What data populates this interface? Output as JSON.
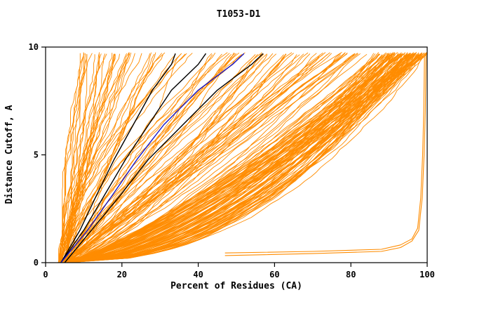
{
  "page": {
    "background": "#ffffff"
  },
  "chart_data": {
    "type": "line",
    "title": "T1053-D1",
    "xlabel": "Percent of Residues (CA)",
    "ylabel": "Distance Cutoff, A",
    "xlim": [
      0,
      100
    ],
    "ylim": [
      0,
      10
    ],
    "xticks": [
      0,
      20,
      40,
      60,
      80,
      100
    ],
    "yticks": [
      0,
      5,
      10
    ],
    "grid": false,
    "legend": "none",
    "colors": {
      "ensemble": "#ff8c00",
      "baseline": "#000000",
      "highlight": "#1414c8",
      "frame": "#000000",
      "background": "#ffffff"
    },
    "ensemble": {
      "seed": 20531,
      "y_top": 9.7,
      "x_start_range": [
        3.5,
        6
      ],
      "jitter": 0.8,
      "groups": [
        {
          "name": "left-fan",
          "count": 55,
          "x_end": [
            9,
            55
          ],
          "shape": [
            0.85,
            1.7
          ],
          "bias": 1.3
        },
        {
          "name": "mid-bundle",
          "count": 45,
          "x_end": [
            55,
            88
          ],
          "shape": [
            0.6,
            1.1
          ],
          "bias": 1.0
        },
        {
          "name": "right-dense",
          "count": 95,
          "x_end": [
            86,
            100
          ],
          "shape": [
            0.42,
            0.8
          ],
          "bias": 0.6
        }
      ]
    },
    "highlight_series": [
      {
        "name": "baseline-black-1",
        "color": "#000000",
        "width": 1.4,
        "points": [
          [
            4,
            0
          ],
          [
            9,
            1.5
          ],
          [
            13,
            3
          ],
          [
            18,
            4.8
          ],
          [
            23,
            6.4
          ],
          [
            28,
            8
          ],
          [
            33,
            9.2
          ],
          [
            34,
            9.7
          ]
        ]
      },
      {
        "name": "baseline-black-2",
        "color": "#000000",
        "width": 1.4,
        "points": [
          [
            4,
            0
          ],
          [
            10,
            1.5
          ],
          [
            15,
            3
          ],
          [
            21,
            4.8
          ],
          [
            27,
            6.4
          ],
          [
            33,
            8
          ],
          [
            40,
            9.2
          ],
          [
            42,
            9.7
          ]
        ]
      },
      {
        "name": "baseline-black-3",
        "color": "#000000",
        "width": 1.4,
        "points": [
          [
            5,
            0
          ],
          [
            12,
            1.5
          ],
          [
            19,
            3
          ],
          [
            27,
            4.8
          ],
          [
            36,
            6.4
          ],
          [
            45,
            8
          ],
          [
            54,
            9.2
          ],
          [
            57,
            9.7
          ]
        ]
      },
      {
        "name": "model-blue",
        "color": "#1414c8",
        "width": 1.4,
        "points": [
          [
            4,
            0
          ],
          [
            11,
            1.5
          ],
          [
            17,
            3
          ],
          [
            24,
            4.8
          ],
          [
            31,
            6.4
          ],
          [
            40,
            8
          ],
          [
            49,
            9.2
          ],
          [
            52,
            9.7
          ]
        ]
      },
      {
        "name": "outlier-orange-1",
        "color": "#ff8c00",
        "width": 1.1,
        "points": [
          [
            47,
            0.45
          ],
          [
            70,
            0.52
          ],
          [
            88,
            0.62
          ],
          [
            93,
            0.82
          ],
          [
            96,
            1.1
          ],
          [
            97.5,
            1.6
          ],
          [
            98.3,
            3
          ],
          [
            98.8,
            5
          ],
          [
            99.1,
            7
          ],
          [
            99.3,
            9.7
          ]
        ]
      },
      {
        "name": "outlier-orange-2",
        "color": "#ff8c00",
        "width": 1.1,
        "points": [
          [
            47,
            0.33
          ],
          [
            70,
            0.42
          ],
          [
            88,
            0.52
          ],
          [
            93,
            0.7
          ],
          [
            96,
            1.0
          ],
          [
            97.8,
            1.5
          ],
          [
            98.7,
            3
          ],
          [
            99.2,
            5
          ],
          [
            99.5,
            7
          ],
          [
            99.7,
            9.7
          ]
        ]
      }
    ]
  }
}
